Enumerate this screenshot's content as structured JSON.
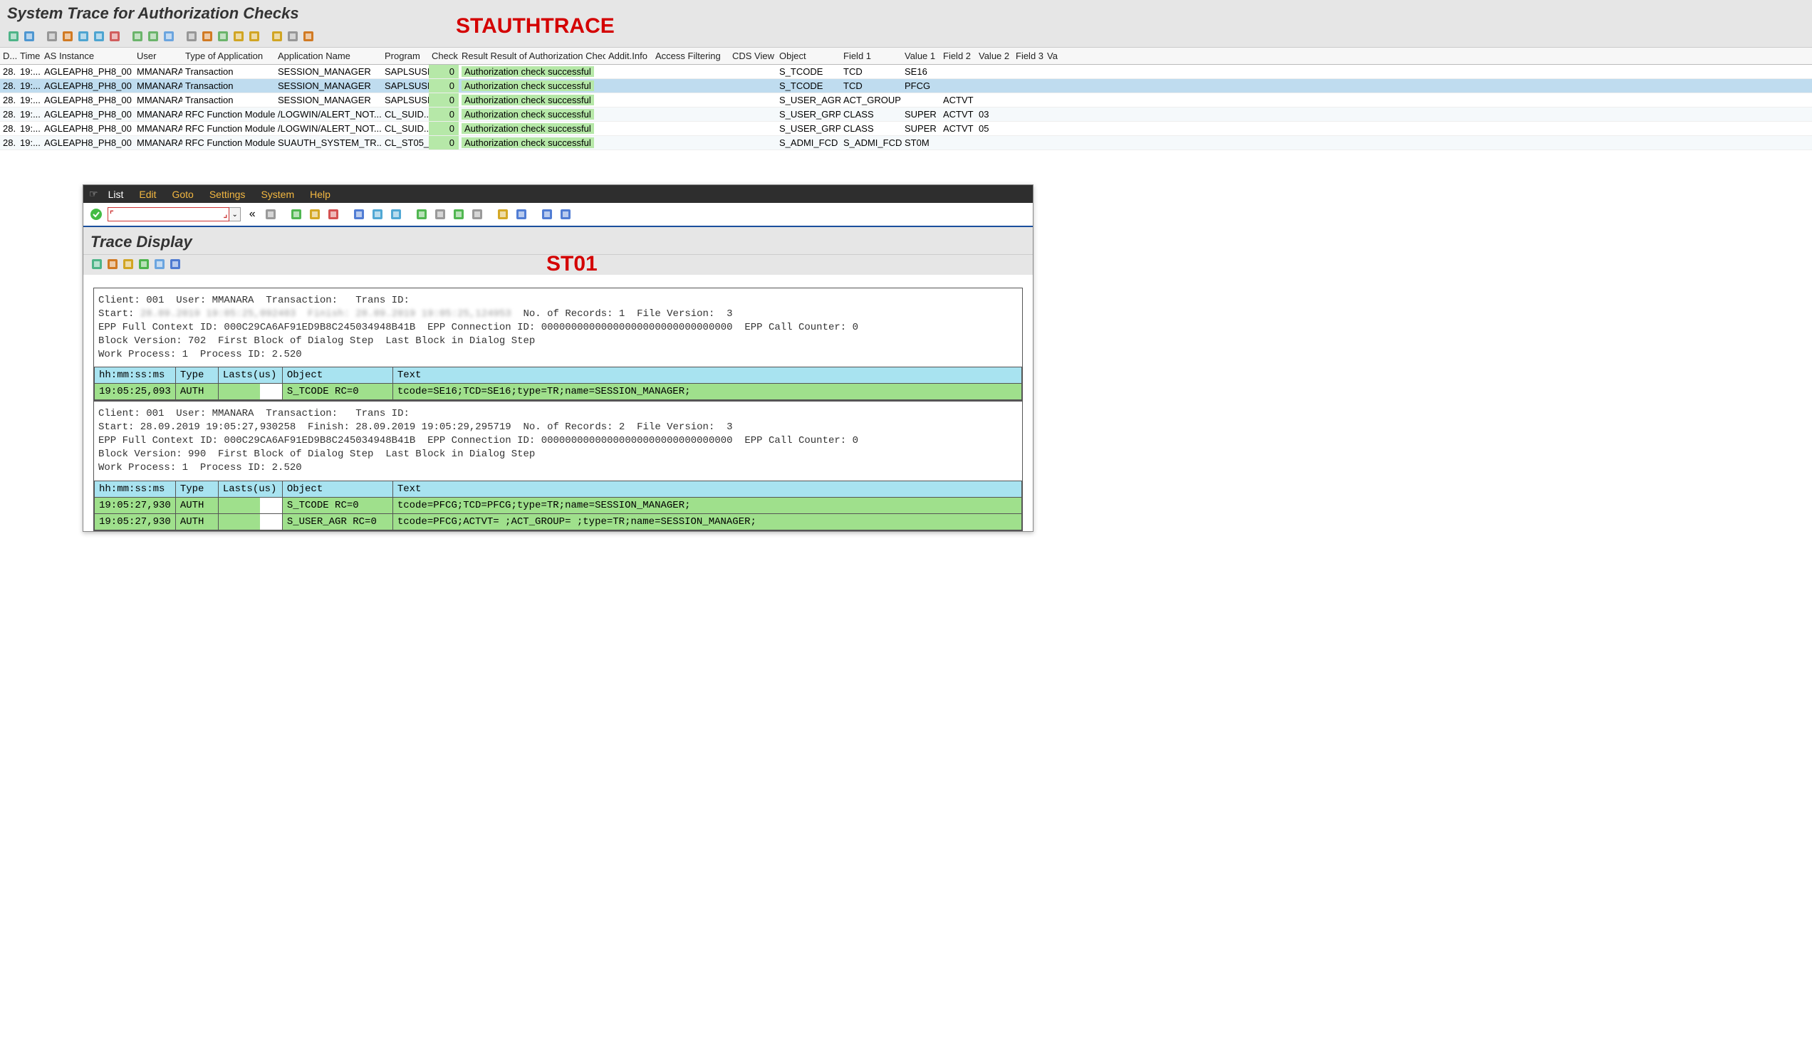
{
  "top": {
    "title": "System Trace for Authorization Checks",
    "red_label": "STAUTHTRACE",
    "toolbar_icons": [
      "details",
      "refresh",
      "sep",
      "export",
      "abc",
      "find",
      "find-next",
      "user",
      "sep",
      "sort-asc",
      "sort-desc",
      "filter",
      "sep",
      "sheet",
      "swap",
      "copy",
      "mail",
      "settings",
      "sep",
      "grid1",
      "grid2",
      "grid3"
    ],
    "columns": [
      {
        "key": "c-date",
        "label": "D..."
      },
      {
        "key": "c-time",
        "label": "Time"
      },
      {
        "key": "c-inst",
        "label": "AS Instance"
      },
      {
        "key": "c-user",
        "label": "User"
      },
      {
        "key": "c-toa",
        "label": "Type of Application"
      },
      {
        "key": "c-app",
        "label": "Application Name"
      },
      {
        "key": "c-prog",
        "label": "Program"
      },
      {
        "key": "c-check",
        "label": "Check"
      },
      {
        "key": "c-result",
        "label": "Result Result of Authorization Check"
      },
      {
        "key": "c-addit",
        "label": "Addit.Info"
      },
      {
        "key": "c-access",
        "label": "Access Filtering"
      },
      {
        "key": "c-cds",
        "label": "CDS View"
      },
      {
        "key": "c-obj",
        "label": "Object"
      },
      {
        "key": "c-f1",
        "label": "Field 1"
      },
      {
        "key": "c-v1",
        "label": "Value 1"
      },
      {
        "key": "c-f2",
        "label": "Field 2"
      },
      {
        "key": "c-v2",
        "label": "Value 2"
      },
      {
        "key": "c-f3",
        "label": "Field 3"
      },
      {
        "key": "c-va",
        "label": "Va"
      }
    ],
    "rows": [
      {
        "date": "28.",
        "time": "19:...",
        "inst": "AGLEAPH8_PH8_00",
        "user": "MMANARA",
        "toa": "Transaction",
        "app": "SESSION_MANAGER",
        "prog": "SAPLSUSE",
        "check": "0",
        "result": "Authorization check successful",
        "obj": "S_TCODE",
        "f1": "TCD",
        "v1": "SE16",
        "f2": "",
        "v2": "",
        "f3": "",
        "selected": false,
        "alt": false
      },
      {
        "date": "28.",
        "time": "19:...",
        "inst": "AGLEAPH8_PH8_00",
        "user": "MMANARA",
        "toa": "Transaction",
        "app": "SESSION_MANAGER",
        "prog": "SAPLSUSE",
        "check": "0",
        "result": "Authorization check successful",
        "obj": "S_TCODE",
        "f1": "TCD",
        "v1": "PFCG",
        "f2": "",
        "v2": "",
        "f3": "",
        "selected": true,
        "alt": false
      },
      {
        "date": "28.",
        "time": "19:...",
        "inst": "AGLEAPH8_PH8_00",
        "user": "MMANARA",
        "toa": "Transaction",
        "app": "SESSION_MANAGER",
        "prog": "SAPLSUSE",
        "check": "0",
        "result": "Authorization check successful",
        "obj": "S_USER_AGR",
        "f1": "ACT_GROUP",
        "v1": "",
        "f2": "ACTVT",
        "v2": "",
        "f3": "",
        "selected": false,
        "alt": false
      },
      {
        "date": "28.",
        "time": "19:...",
        "inst": "AGLEAPH8_PH8_00",
        "user": "MMANARA",
        "toa": "RFC Function Module",
        "app": "/LOGWIN/ALERT_NOT...",
        "prog": "CL_SUID...",
        "check": "0",
        "result": "Authorization check successful",
        "obj": "S_USER_GRP",
        "f1": "CLASS",
        "v1": "SUPER",
        "f2": "ACTVT",
        "v2": "03",
        "f3": "",
        "selected": false,
        "alt": true
      },
      {
        "date": "28.",
        "time": "19:...",
        "inst": "AGLEAPH8_PH8_00",
        "user": "MMANARA",
        "toa": "RFC Function Module",
        "app": "/LOGWIN/ALERT_NOT...",
        "prog": "CL_SUID...",
        "check": "0",
        "result": "Authorization check successful",
        "obj": "S_USER_GRP",
        "f1": "CLASS",
        "v1": "SUPER",
        "f2": "ACTVT",
        "v2": "05",
        "f3": "",
        "selected": false,
        "alt": false
      },
      {
        "date": "28.",
        "time": "19:...",
        "inst": "AGLEAPH8_PH8_00",
        "user": "MMANARA",
        "toa": "RFC Function Module",
        "app": "SUAUTH_SYSTEM_TR...",
        "prog": "CL_ST05_...",
        "check": "0",
        "result": "Authorization check successful",
        "obj": "S_ADMI_FCD",
        "f1": "S_ADMI_FCD",
        "v1": "ST0M",
        "f2": "",
        "v2": "",
        "f3": "",
        "selected": false,
        "alt": true
      }
    ]
  },
  "st01": {
    "menu": [
      "List",
      "Edit",
      "Goto",
      "Settings",
      "System",
      "Help"
    ],
    "title": "Trace Display",
    "red_label": "ST01",
    "cmd_value": "",
    "sub_toolbar_icons": [
      "details",
      "swap",
      "back",
      "forward",
      "filter",
      "info"
    ],
    "app_toolbar_icons": [
      "ok",
      "cmd",
      "back-dbl",
      "save",
      "sep",
      "nav-back",
      "nav-exit",
      "nav-cancel",
      "sep",
      "print",
      "find",
      "find-next",
      "sep",
      "first",
      "prev",
      "next",
      "last",
      "sep",
      "new-win",
      "layout",
      "sep",
      "help",
      "screen"
    ],
    "blocks": [
      {
        "meta_lines": [
          "Client: 001  User: MMANARA  Transaction:   Trans ID:",
          {
            "prefix": "Start: ",
            "blur": "28.09.2019 19:05:25,092403  Finish: 28.09.2019 19:05:25,124953",
            "suffix": "  No. of Records: 1  File Version:  3"
          },
          "EPP Full Context ID: 000C29CA6AF91ED9B8C245034948B41B  EPP Connection ID: 00000000000000000000000000000000  EPP Call Counter: 0",
          "Block Version: 702  First Block of Dialog Step  Last Block in Dialog Step",
          "Work Process: 1  Process ID: 2.520"
        ],
        "header": {
          "time": "hh:mm:ss:ms",
          "type": "Type",
          "lasts": "Lasts(us)",
          "obj": "Object",
          "text": "Text"
        },
        "rows": [
          {
            "time": "19:05:25,093",
            "type": "AUTH",
            "lasts": "",
            "obj": "S_TCODE    RC=0",
            "text": "tcode=SE16;TCD=SE16;type=TR;name=SESSION_MANAGER;"
          }
        ]
      },
      {
        "meta_lines": [
          "Client: 001  User: MMANARA  Transaction:   Trans ID:",
          "Start: 28.09.2019 19:05:27,930258  Finish: 28.09.2019 19:05:29,295719  No. of Records: 2  File Version:  3",
          "EPP Full Context ID: 000C29CA6AF91ED9B8C245034948B41B  EPP Connection ID: 00000000000000000000000000000000  EPP Call Counter: 0",
          "Block Version: 990  First Block of Dialog Step  Last Block in Dialog Step",
          "Work Process: 1  Process ID: 2.520"
        ],
        "header": {
          "time": "hh:mm:ss:ms",
          "type": "Type",
          "lasts": "Lasts(us)",
          "obj": "Object",
          "text": "Text"
        },
        "rows": [
          {
            "time": "19:05:27,930",
            "type": "AUTH",
            "lasts": "",
            "obj": "S_TCODE    RC=0",
            "text": "tcode=PFCG;TCD=PFCG;type=TR;name=SESSION_MANAGER;"
          },
          {
            "time": "19:05:27,930",
            "type": "AUTH",
            "lasts": "",
            "obj": "S_USER_AGR RC=0",
            "text": "tcode=PFCG;ACTVT= ;ACT_GROUP= ;type=TR;name=SESSION_MANAGER;"
          }
        ]
      }
    ]
  },
  "colors": {
    "header_bg": "#e6e6e6",
    "red": "#d40000",
    "green_cell": "#9fe08c",
    "teal_header": "#a8e3f0",
    "selected_row": "#bfdcef"
  }
}
